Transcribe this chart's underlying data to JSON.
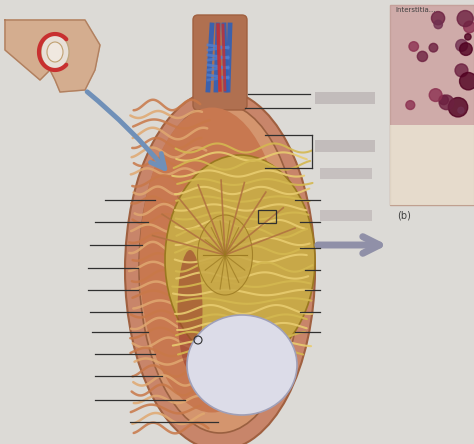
{
  "fig_width": 4.74,
  "fig_height": 4.44,
  "dpi": 100,
  "colors": {
    "bg": "#e8e4e0",
    "outer_scrotum": "#c8856a",
    "outer_scrotum_edge": "#a06040",
    "inner_tunica": "#d4956e",
    "inner_tunica_edge": "#9a6040",
    "epi_outer": "#c87850",
    "epi_inner": "#d4956a",
    "epi_coil": "#c87848",
    "epi_coil2": "#e0a870",
    "testis_bg": "#c8a848",
    "testis_tubule": "#d4b850",
    "testis_tubule2": "#e8cc70",
    "rete_testis": "#c8a030",
    "rete_edge": "#9a7820",
    "septum": "#b07040",
    "white_body": "#dcdce8",
    "white_edge": "#a0a0b8",
    "cord_brown": "#b07050",
    "vessel_red": "#c83030",
    "vessel_blue": "#3060b8",
    "vessel_blue2": "#5080d0",
    "arrow_blue": "#7090b8",
    "arrow_gray": "#9090a8",
    "line_color": "#404040",
    "hist_bg_top": "#d8b0a8",
    "hist_bg_bot": "#e8d8c8",
    "hist_dot": "#8c3050",
    "hist_dot2": "#6c2040",
    "label_blurred": "#b8b0b0"
  },
  "bg_overall": "#dcdad6"
}
